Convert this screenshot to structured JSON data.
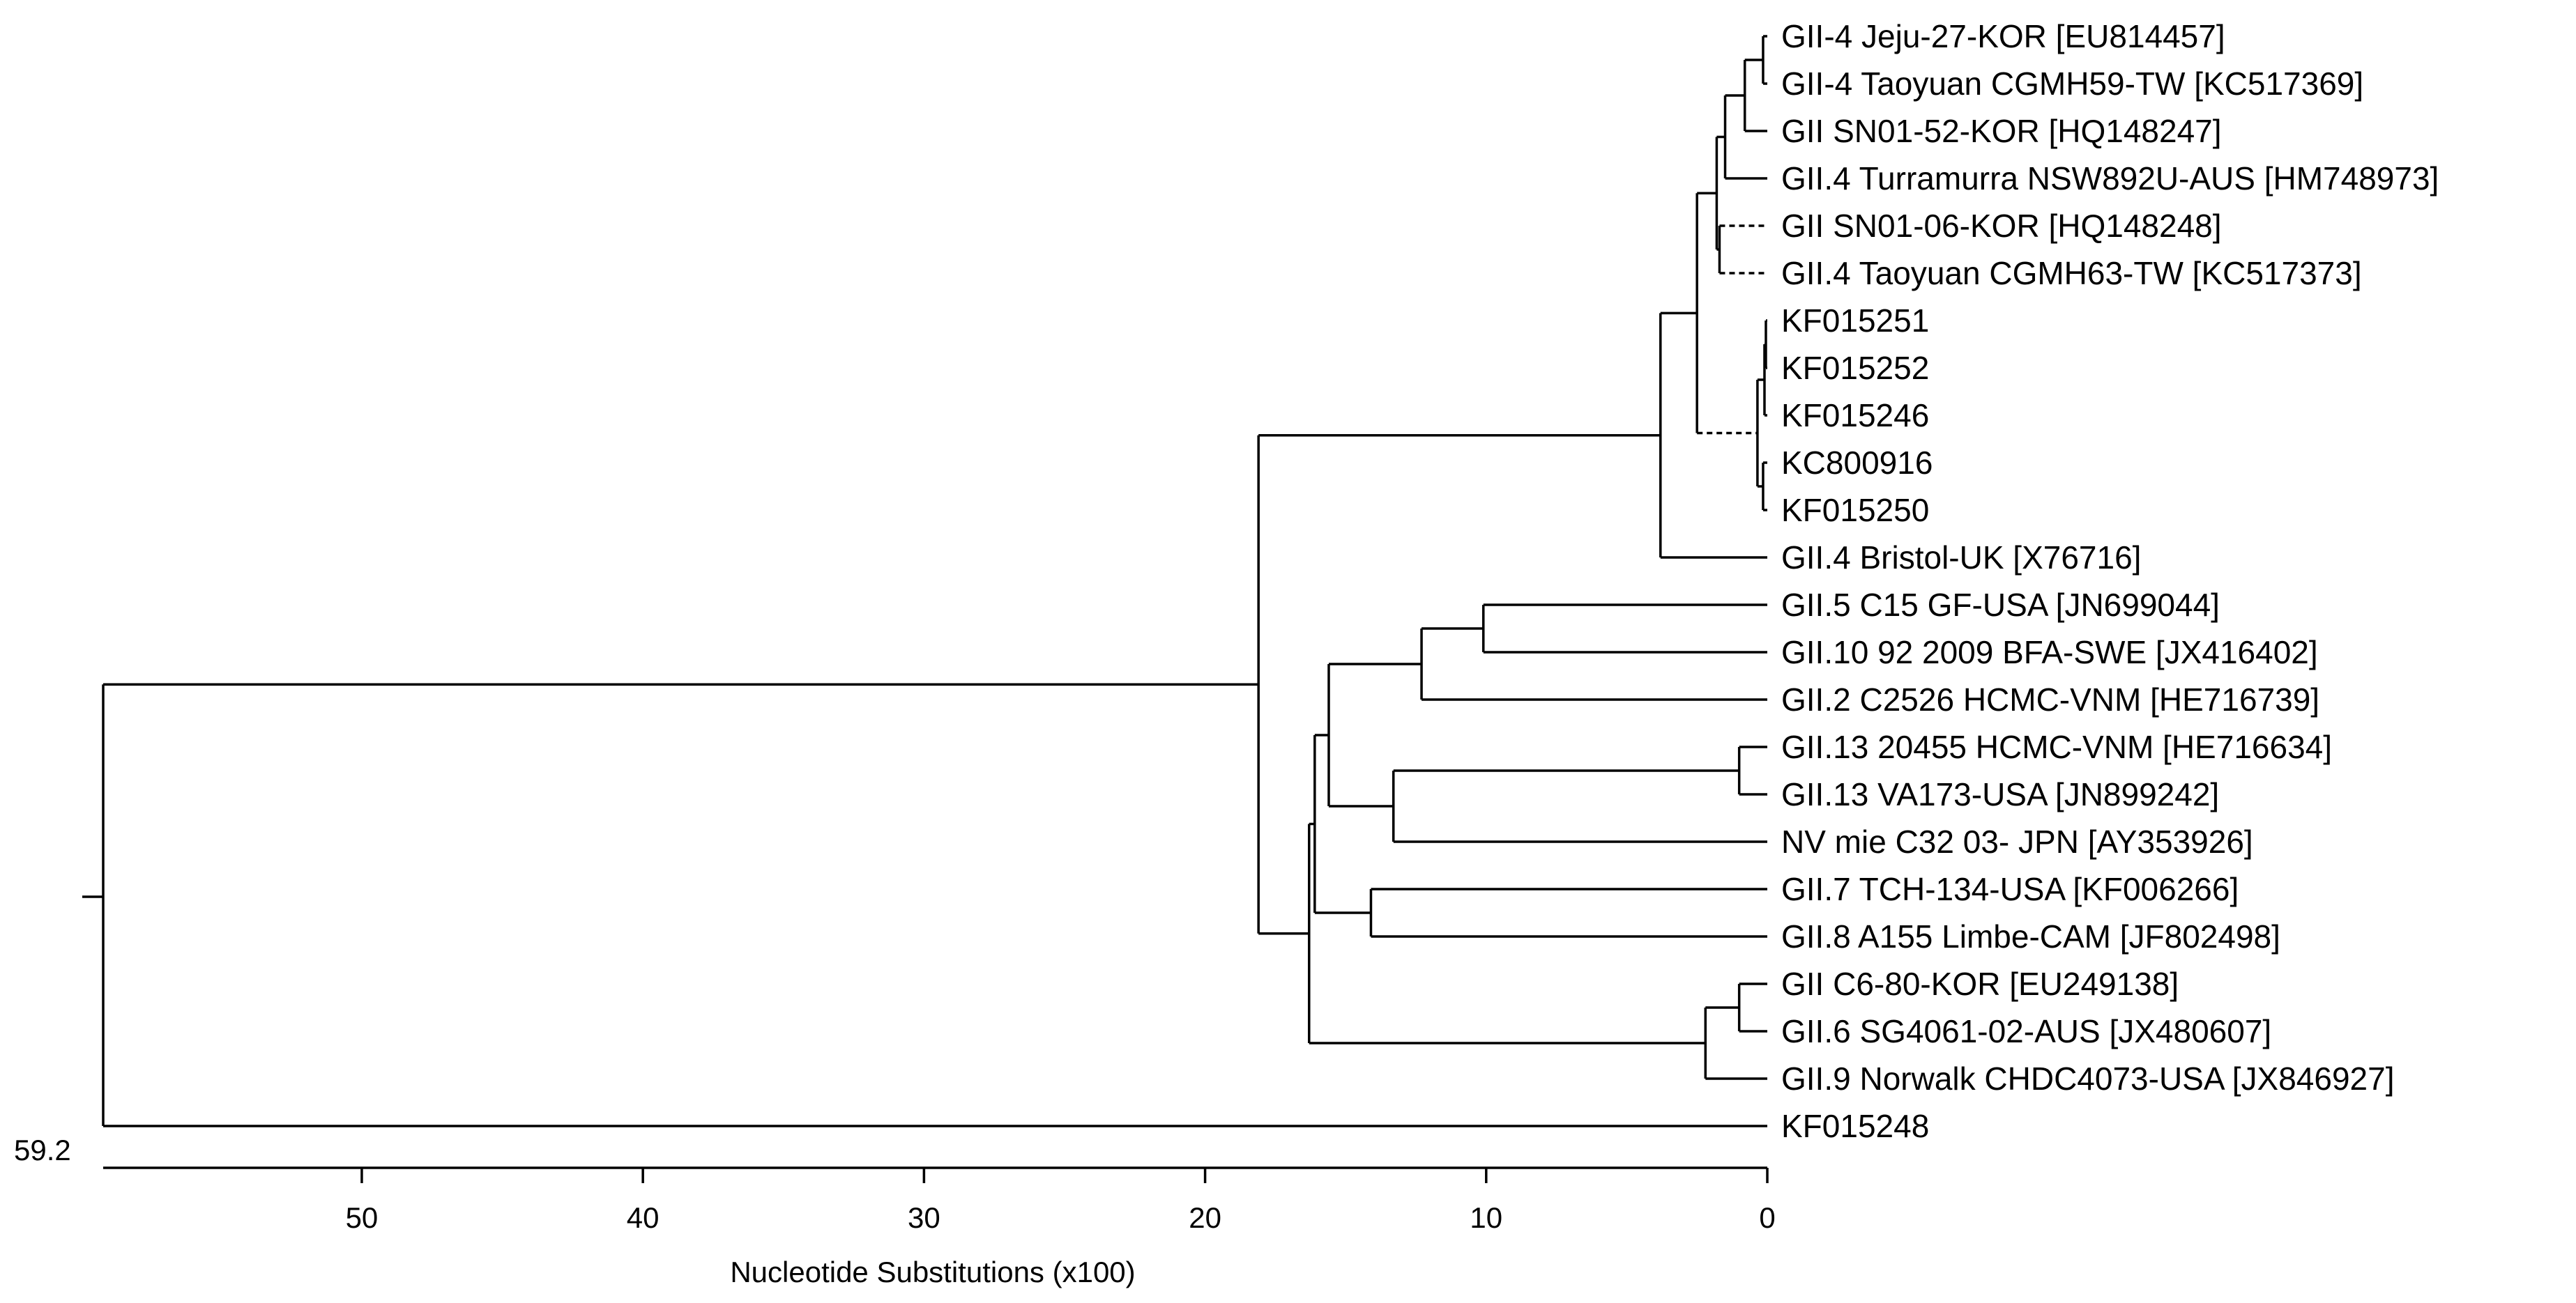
{
  "chart_data": {
    "type": "dendrogram",
    "axis": {
      "title": "Nucleotide Substitutions (x100)",
      "ticks": [
        50,
        40,
        30,
        20,
        10,
        0
      ],
      "range": [
        59.2,
        0
      ],
      "root_depth_label": "59.2"
    },
    "leaves": [
      "GII-4 Jeju-27-KOR [EU814457]",
      "GII-4 Taoyuan CGMH59-TW [KC517369]",
      "GII SN01-52-KOR [HQ148247]",
      "GII.4 Turramurra NSW892U-AUS [HM748973]",
      "GII SN01-06-KOR [HQ148248]",
      "GII.4 Taoyuan CGMH63-TW [KC517373]",
      "KF015251",
      "KF015252",
      "KF015246",
      "KC800916",
      "KF015250",
      "GII.4 Bristol-UK [X76716]",
      "GII.5 C15 GF-USA [JN699044]",
      "GII.10 92 2009 BFA-SWE [JX416402]",
      "GII.2 C2526 HCMC-VNM [HE716739]",
      "GII.13 20455 HCMC-VNM [HE716634]",
      "GII.13 VA173-USA [JN899242]",
      "NV mie C32 03- JPN [AY353926]",
      "GII.7 TCH-134-USA [KF006266]",
      "GII.8 A155 Limbe-CAM [JF802498]",
      "GII C6-80-KOR [EU249138]",
      "GII.6 SG4061-02-AUS [JX480607]",
      "GII.9 Norwalk CHDC4073-USA [JX846927]",
      "KF015248"
    ],
    "tree": {
      "h": 59.2,
      "children": [
        {
          "h": 18.1,
          "children": [
            {
              "h": 3.8,
              "children": [
                {
                  "h": 2.5,
                  "children": [
                    {
                      "h": 1.8,
                      "children": [
                        {
                          "h": 1.5,
                          "children": [
                            {
                              "h": 0.8,
                              "children": [
                                {
                                  "h": 0.15,
                                  "children": [
                                    {
                                      "leaf": 0
                                    },
                                    {
                                      "leaf": 1
                                    }
                                  ]
                                },
                                {
                                  "leaf": 2
                                }
                              ]
                            },
                            {
                              "leaf": 3
                            }
                          ]
                        },
                        {
                          "h": 1.7,
                          "children": [
                            {
                              "leaf": 4,
                              "dashed": true
                            },
                            {
                              "leaf": 5,
                              "dashed": true
                            }
                          ]
                        }
                      ]
                    },
                    {
                      "h": 0.35,
                      "dashed": true,
                      "children": [
                        {
                          "h": 0.1,
                          "children": [
                            {
                              "h": 0.05,
                              "children": [
                                {
                                  "leaf": 6
                                },
                                {
                                  "leaf": 7
                                }
                              ]
                            },
                            {
                              "leaf": 8
                            }
                          ]
                        },
                        {
                          "h": 0.15,
                          "children": [
                            {
                              "leaf": 9
                            },
                            {
                              "leaf": 10
                            }
                          ]
                        }
                      ]
                    }
                  ]
                },
                {
                  "leaf": 11
                }
              ]
            },
            {
              "h": 16.3,
              "children": [
                {
                  "h": 16.1,
                  "children": [
                    {
                      "h": 15.6,
                      "children": [
                        {
                          "h": 12.3,
                          "children": [
                            {
                              "h": 10.1,
                              "children": [
                                {
                                  "leaf": 12
                                },
                                {
                                  "leaf": 13
                                }
                              ]
                            },
                            {
                              "leaf": 14
                            }
                          ]
                        },
                        {
                          "h": 13.3,
                          "children": [
                            {
                              "h": 1.0,
                              "children": [
                                {
                                  "leaf": 15
                                },
                                {
                                  "leaf": 16
                                }
                              ]
                            },
                            {
                              "leaf": 17
                            }
                          ]
                        }
                      ]
                    },
                    {
                      "h": 14.1,
                      "children": [
                        {
                          "leaf": 18
                        },
                        {
                          "leaf": 19
                        }
                      ]
                    }
                  ]
                },
                {
                  "h": 2.2,
                  "children": [
                    {
                      "h": 1.0,
                      "children": [
                        {
                          "leaf": 20
                        },
                        {
                          "leaf": 21
                        }
                      ]
                    },
                    {
                      "leaf": 22
                    }
                  ]
                }
              ]
            }
          ]
        },
        {
          "leaf": 23
        }
      ]
    }
  }
}
